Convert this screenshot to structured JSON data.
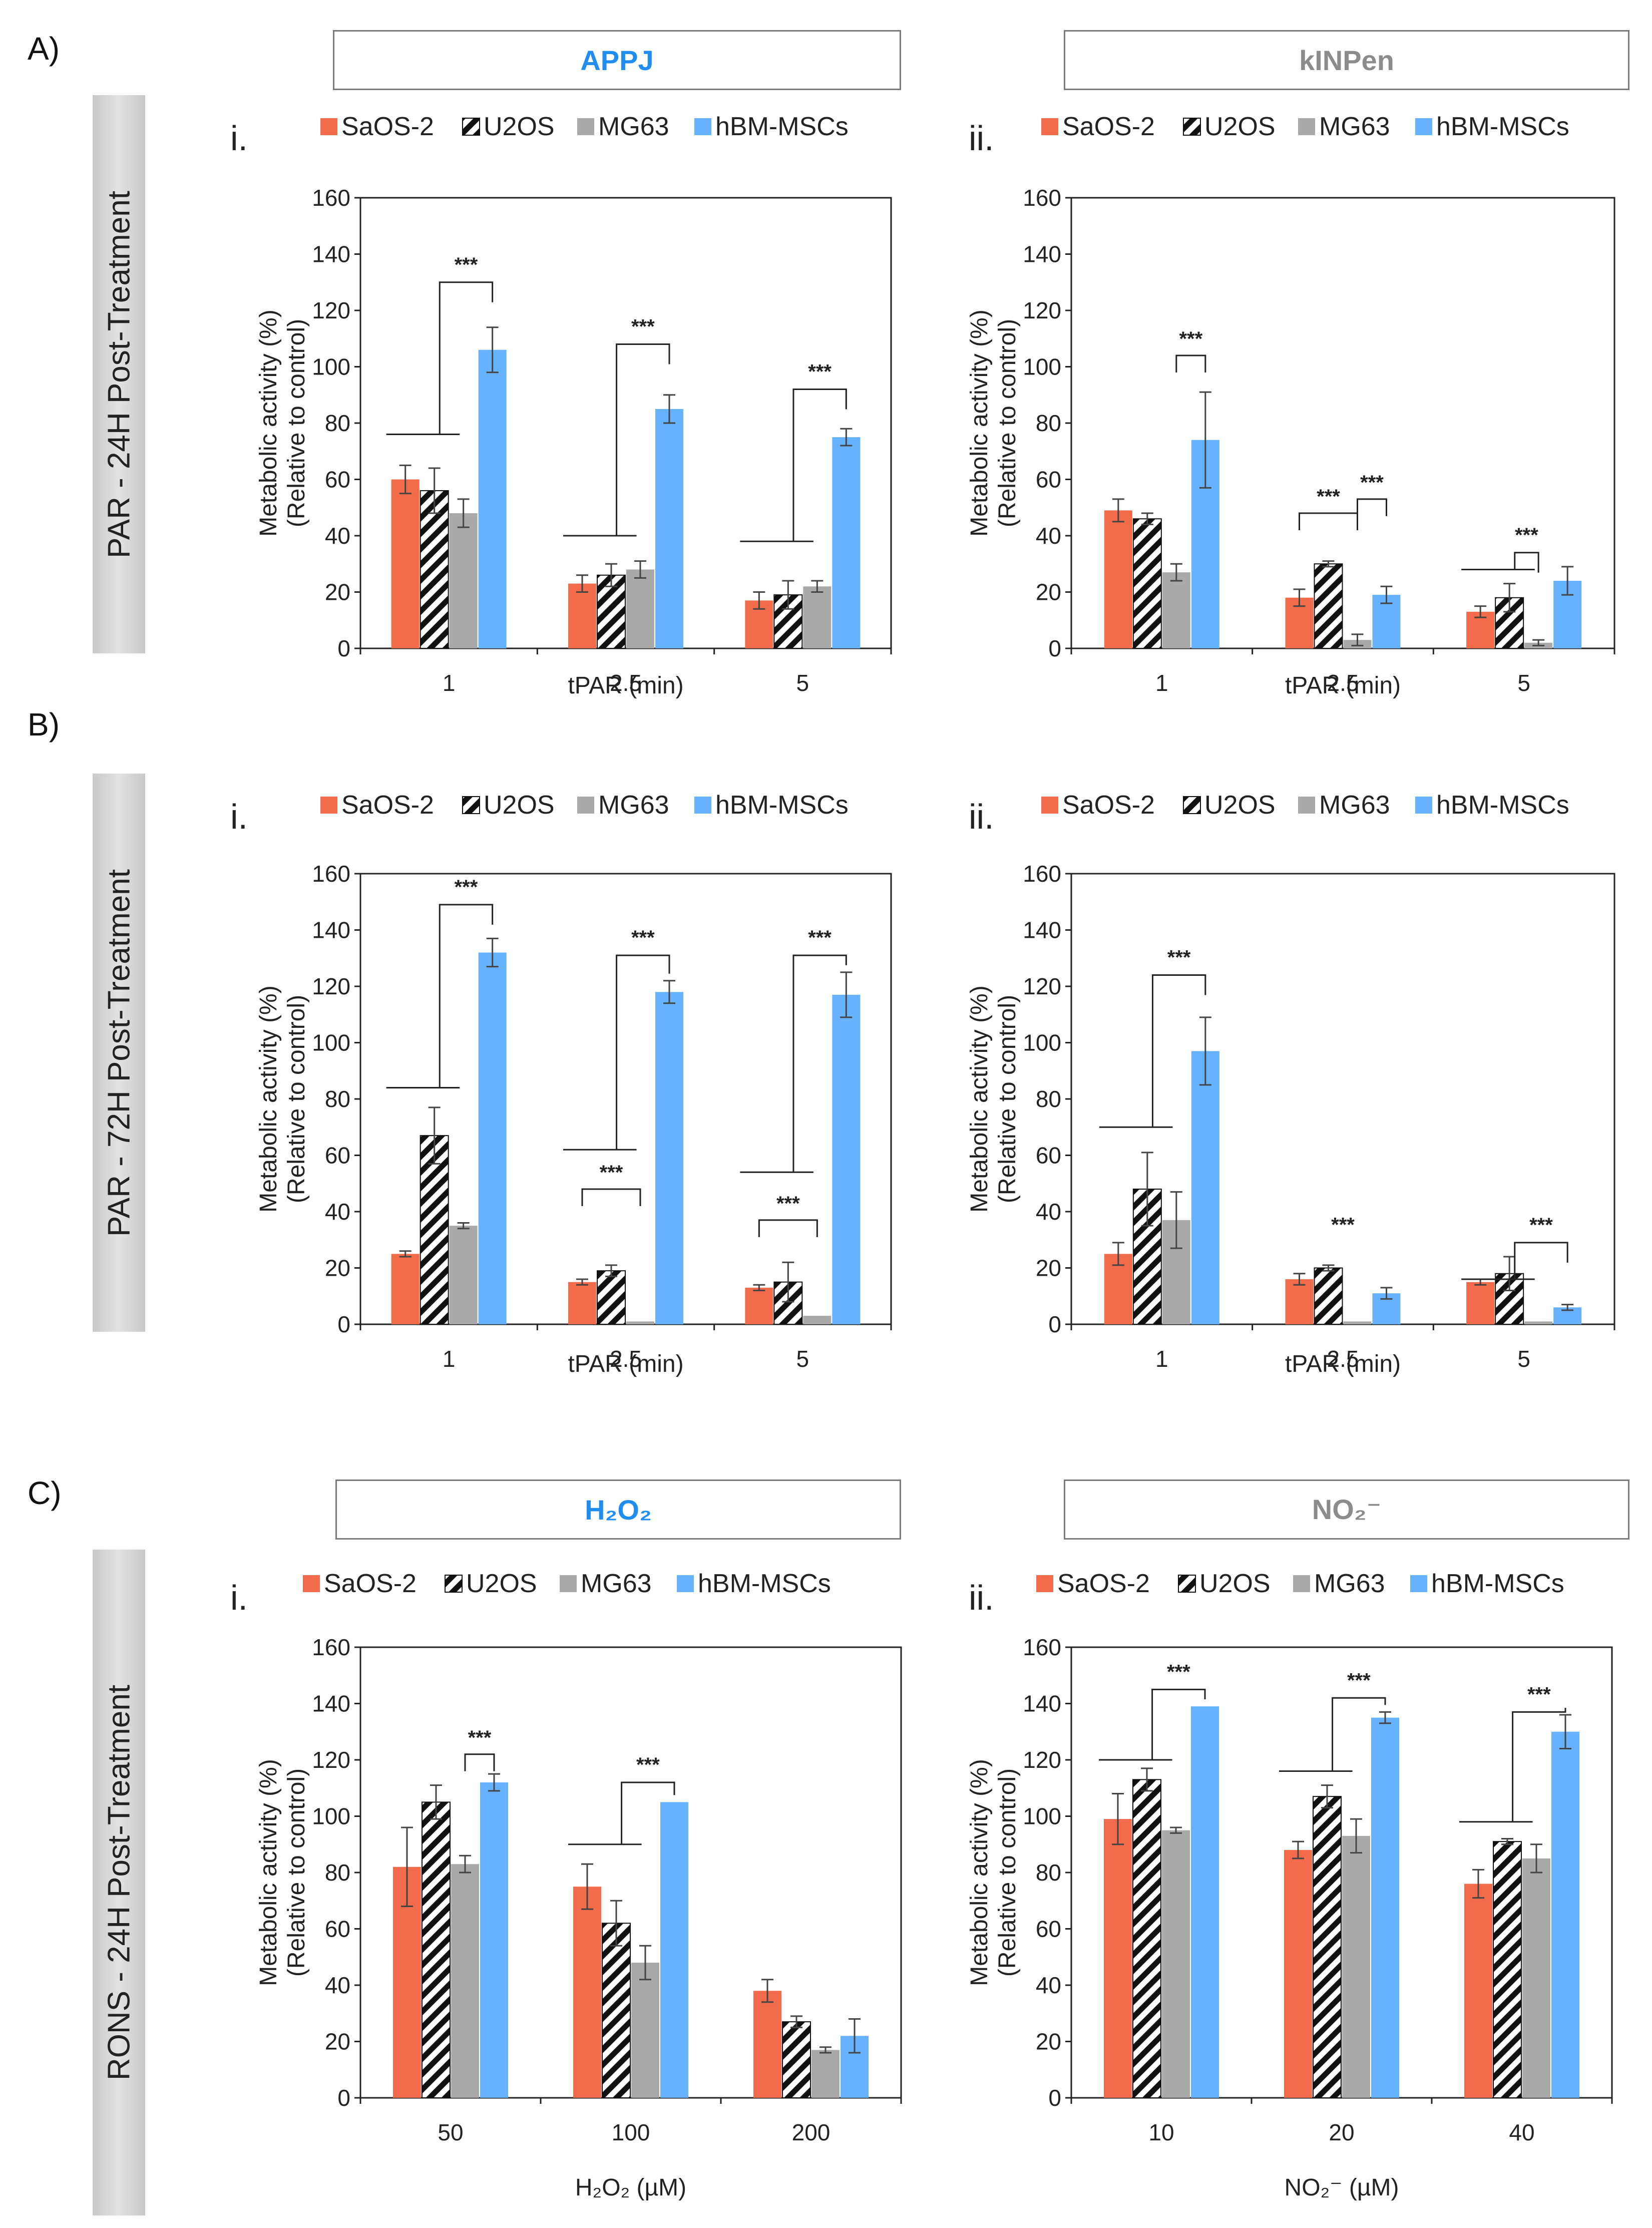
{
  "section_labels": [
    "A)",
    "B)",
    "C)"
  ],
  "side_labels": [
    "PAR - 24H Post-Treatment",
    "PAR - 72H Post-Treatment",
    "RONS - 24H Post-Treatment"
  ],
  "col_headers": [
    "APPJ",
    "kINPen",
    "H₂O₂",
    "NO₂⁻"
  ],
  "colors": {
    "SaOS-2": "#f26b4a",
    "U2OS": "#111111",
    "MG63": "#a9a9a9",
    "hBM-MSCs": "#66b2ff",
    "header_blue": "#1f8ef0",
    "header_gray": "#8c8c8c"
  },
  "chart_data": [
    {
      "type": "bar",
      "panel": "A.i",
      "roman": "i.",
      "categories": [
        "1",
        "2.5",
        "5"
      ],
      "xlabel": "tPAR (min)",
      "ylabel": [
        "Metabolic activity (%)",
        "(Relative to control)"
      ],
      "ylim": [
        0,
        160
      ],
      "yticks": [
        0,
        20,
        40,
        60,
        80,
        100,
        120,
        140,
        160
      ],
      "legend": [
        "SaOS-2",
        "U2OS",
        "MG63",
        "hBM-MSCs"
      ],
      "series": [
        {
          "name": "SaOS-2",
          "values": [
            60,
            23,
            17
          ],
          "errors": [
            5,
            3,
            3
          ]
        },
        {
          "name": "U2OS",
          "values": [
            56,
            26,
            19
          ],
          "errors": [
            8,
            4,
            5
          ]
        },
        {
          "name": "MG63",
          "values": [
            48,
            28,
            22
          ],
          "errors": [
            5,
            3,
            2
          ]
        },
        {
          "name": "hBM-MSCs",
          "values": [
            106,
            85,
            75
          ],
          "errors": [
            8,
            5,
            3
          ]
        }
      ],
      "significance": [
        {
          "text": "***",
          "type": "group",
          "cat": 0,
          "from": 0,
          "to": 3,
          "y_low": 76,
          "y_high": 130
        },
        {
          "text": "***",
          "type": "group",
          "cat": 1,
          "from": 0,
          "to": 3,
          "y_low": 40,
          "y_high": 108
        },
        {
          "text": "***",
          "type": "group",
          "cat": 2,
          "from": 0,
          "to": 3,
          "y_low": 38,
          "y_high": 92
        }
      ]
    },
    {
      "type": "bar",
      "panel": "A.ii",
      "roman": "ii.",
      "categories": [
        "1",
        "2.5",
        "5"
      ],
      "xlabel": "tPAR (min)",
      "ylabel": [
        "Metabolic activity (%)",
        "(Relative to control)"
      ],
      "ylim": [
        0,
        160
      ],
      "yticks": [
        0,
        20,
        40,
        60,
        80,
        100,
        120,
        140,
        160
      ],
      "legend": [
        "SaOS-2",
        "U2OS",
        "MG63",
        "hBM-MSCs"
      ],
      "series": [
        {
          "name": "SaOS-2",
          "values": [
            49,
            18,
            13
          ],
          "errors": [
            4,
            3,
            2
          ]
        },
        {
          "name": "U2OS",
          "values": [
            46,
            30,
            18
          ],
          "errors": [
            2,
            1,
            5
          ]
        },
        {
          "name": "MG63",
          "values": [
            27,
            3,
            2
          ],
          "errors": [
            3,
            2,
            1
          ]
        },
        {
          "name": "hBM-MSCs",
          "values": [
            74,
            19,
            24
          ],
          "errors": [
            17,
            3,
            5
          ]
        }
      ],
      "significance": [
        {
          "text": "***",
          "type": "bracket",
          "cat": 0,
          "from": 2,
          "to": 3,
          "y": 104
        },
        {
          "text": "***",
          "type": "bracket",
          "cat": 1,
          "from": 0,
          "to": 2,
          "y": 48
        },
        {
          "text": "***",
          "type": "bracket",
          "cat": 1,
          "from": 2,
          "to": 3,
          "y": 53
        },
        {
          "text": "***",
          "type": "group",
          "cat": 2,
          "from": 0,
          "to": 2,
          "y_low": 28,
          "y_high": 34
        }
      ]
    },
    {
      "type": "bar",
      "panel": "B.i",
      "roman": "i.",
      "categories": [
        "1",
        "2.5",
        "5"
      ],
      "xlabel": "tPAR (min)",
      "ylabel": [
        "Metabolic activity (%)",
        "(Relative to control)"
      ],
      "ylim": [
        0,
        160
      ],
      "yticks": [
        0,
        20,
        40,
        60,
        80,
        100,
        120,
        140,
        160
      ],
      "legend": [
        "SaOS-2",
        "U2OS",
        "MG63",
        "hBM-MSCs"
      ],
      "series": [
        {
          "name": "SaOS-2",
          "values": [
            25,
            15,
            13
          ],
          "errors": [
            1,
            1,
            1
          ]
        },
        {
          "name": "U2OS",
          "values": [
            67,
            19,
            15
          ],
          "errors": [
            10,
            2,
            7
          ]
        },
        {
          "name": "MG63",
          "values": [
            35,
            1,
            3
          ],
          "errors": [
            1,
            0,
            0
          ]
        },
        {
          "name": "hBM-MSCs",
          "values": [
            132,
            118,
            117
          ],
          "errors": [
            5,
            4,
            8
          ]
        }
      ],
      "significance": [
        {
          "text": "***",
          "type": "group",
          "cat": 0,
          "from": 0,
          "to": 3,
          "y_low": 84,
          "y_high": 149
        },
        {
          "text": "***",
          "type": "group",
          "cat": 1,
          "from": 0,
          "to": 3,
          "y_low": 62,
          "y_high": 131
        },
        {
          "text": "***",
          "type": "bracket_inner",
          "cat": 1,
          "from": 0,
          "to": 2,
          "y_low": 31,
          "y_high": 48
        },
        {
          "text": "***",
          "type": "group",
          "cat": 2,
          "from": 0,
          "to": 3,
          "y_low": 54,
          "y_high": 131
        },
        {
          "text": "***",
          "type": "bracket_inner",
          "cat": 2,
          "from": 0,
          "to": 2,
          "y_low": 19,
          "y_high": 37
        }
      ]
    },
    {
      "type": "bar",
      "panel": "B.ii",
      "roman": "ii.",
      "categories": [
        "1",
        "2.5",
        "5"
      ],
      "xlabel": "tPAR (min)",
      "ylabel": [
        "Metabolic activity (%)",
        "(Relative to control)"
      ],
      "ylim": [
        0,
        160
      ],
      "yticks": [
        0,
        20,
        40,
        60,
        80,
        100,
        120,
        140,
        160
      ],
      "legend": [
        "SaOS-2",
        "U2OS",
        "MG63",
        "hBM-MSCs"
      ],
      "series": [
        {
          "name": "SaOS-2",
          "values": [
            25,
            16,
            15
          ],
          "errors": [
            4,
            2,
            1
          ]
        },
        {
          "name": "U2OS",
          "values": [
            48,
            20,
            18
          ],
          "errors": [
            13,
            1,
            6
          ]
        },
        {
          "name": "MG63",
          "values": [
            37,
            1,
            1
          ],
          "errors": [
            10,
            0,
            0
          ]
        },
        {
          "name": "hBM-MSCs",
          "values": [
            97,
            11,
            6
          ],
          "errors": [
            12,
            2,
            1
          ]
        }
      ],
      "significance": [
        {
          "text": "***",
          "type": "group",
          "cat": 0,
          "from": 0,
          "to": 3,
          "y_low": 70,
          "y_high": 124
        },
        {
          "text": "***",
          "type": "label",
          "cat": 1,
          "y": 33
        },
        {
          "text": "***",
          "type": "group",
          "cat": 2,
          "from": 0,
          "to": 3,
          "y_low": 16,
          "y_high": 29
        }
      ]
    },
    {
      "type": "bar",
      "panel": "C.i",
      "roman": "i.",
      "categories": [
        "50",
        "100",
        "200"
      ],
      "xlabel": "H₂O₂ (µM)",
      "ylabel": [
        "Metabolic activity (%)",
        "(Relative to control)"
      ],
      "ylim": [
        0,
        160
      ],
      "yticks": [
        0,
        20,
        40,
        60,
        80,
        100,
        120,
        140,
        160
      ],
      "legend": [
        "SaOS-2",
        "U2OS",
        "MG63",
        "hBM-MSCs"
      ],
      "series": [
        {
          "name": "SaOS-2",
          "values": [
            82,
            75,
            38
          ],
          "errors": [
            14,
            8,
            4
          ]
        },
        {
          "name": "U2OS",
          "values": [
            105,
            62,
            27
          ],
          "errors": [
            6,
            8,
            2
          ]
        },
        {
          "name": "MG63",
          "values": [
            83,
            48,
            17
          ],
          "errors": [
            3,
            6,
            1
          ]
        },
        {
          "name": "hBM-MSCs",
          "values": [
            112,
            105,
            22
          ],
          "errors": [
            3,
            0,
            6
          ]
        }
      ],
      "significance": [
        {
          "text": "***",
          "type": "bracket",
          "cat": 0,
          "from": 2,
          "to": 3,
          "y": 122
        },
        {
          "text": "***",
          "type": "group",
          "cat": 1,
          "from": 0,
          "to": 3,
          "y_low": 90,
          "y_high": 112
        }
      ]
    },
    {
      "type": "bar",
      "panel": "C.ii",
      "roman": "ii.",
      "categories": [
        "10",
        "20",
        "40"
      ],
      "xlabel": "NO₂⁻ (µM)",
      "ylabel": [
        "Metabolic activity (%)",
        "(Relative to control)"
      ],
      "ylim": [
        0,
        160
      ],
      "yticks": [
        0,
        20,
        40,
        60,
        80,
        100,
        120,
        140,
        160
      ],
      "legend": [
        "SaOS-2",
        "U2OS",
        "MG63",
        "hBM-MSCs"
      ],
      "series": [
        {
          "name": "SaOS-2",
          "values": [
            99,
            88,
            76
          ],
          "errors": [
            9,
            3,
            5
          ]
        },
        {
          "name": "U2OS",
          "values": [
            113,
            107,
            91
          ],
          "errors": [
            4,
            4,
            1
          ]
        },
        {
          "name": "MG63",
          "values": [
            95,
            93,
            85
          ],
          "errors": [
            1,
            6,
            5
          ]
        },
        {
          "name": "hBM-MSCs",
          "values": [
            139,
            135,
            130
          ],
          "errors": [
            0,
            2,
            6
          ]
        }
      ],
      "significance": [
        {
          "text": "***",
          "type": "group",
          "cat": 0,
          "from": 0,
          "to": 3,
          "y_low": 120,
          "y_high": 145
        },
        {
          "text": "***",
          "type": "group",
          "cat": 1,
          "from": 0,
          "to": 3,
          "y_low": 116,
          "y_high": 142
        },
        {
          "text": "***",
          "type": "group",
          "cat": 2,
          "from": 0,
          "to": 3,
          "y_low": 98,
          "y_high": 137
        }
      ]
    }
  ]
}
